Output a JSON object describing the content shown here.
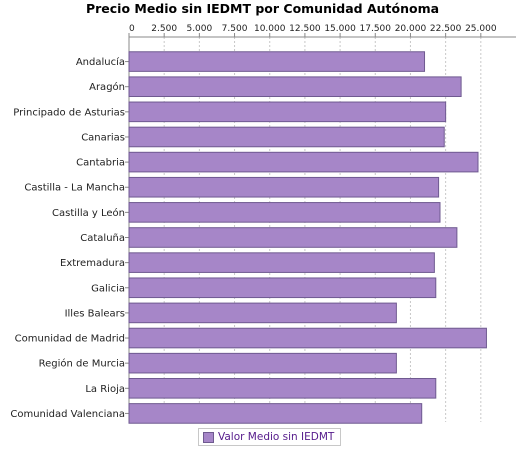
{
  "chart_data": {
    "type": "bar",
    "orientation": "horizontal",
    "title": "Precio Medio sin IEDMT por Comunidad Autónoma",
    "xlabel": "",
    "ylabel": "",
    "xlim": [
      0,
      27500
    ],
    "x_ticks": [
      0,
      2500,
      5000,
      7500,
      10000,
      12500,
      15000,
      17500,
      20000,
      22500,
      25000
    ],
    "x_tick_labels": [
      "0",
      "2.500",
      "5.000",
      "7.500",
      "10.000",
      "12.500",
      "15.000",
      "17.500",
      "20.000",
      "22.500",
      "25.000"
    ],
    "grid": true,
    "legend_position": "bottom",
    "categories": [
      "Andalucía",
      "Aragón",
      "Principado de Asturias",
      "Canarias",
      "Cantabria",
      "Castilla - La Mancha",
      "Castilla y León",
      "Cataluña",
      "Extremadura",
      "Galicia",
      "Illes Balears",
      "Comunidad de Madrid",
      "Región de Murcia",
      "La Rioja",
      "Comunidad Valenciana"
    ],
    "series": [
      {
        "name": "Valor Medio sin IEDMT",
        "color": "#a686c8",
        "values": [
          21000,
          23600,
          22500,
          22400,
          24800,
          22000,
          22100,
          23300,
          21700,
          21800,
          19000,
          25400,
          19000,
          21800,
          20800
        ]
      }
    ]
  }
}
